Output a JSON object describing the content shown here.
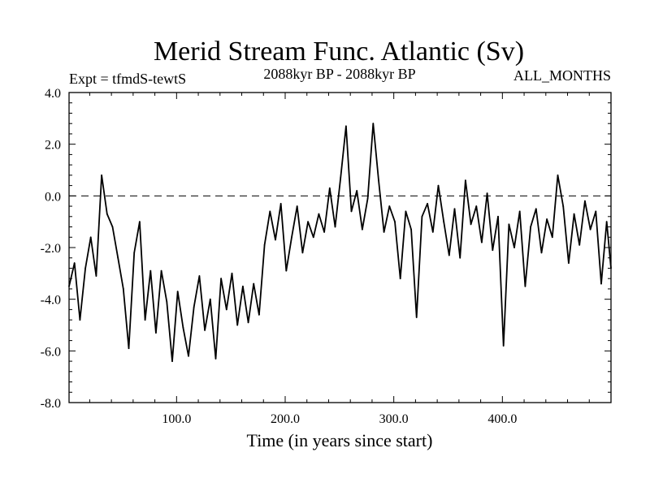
{
  "chart_data": {
    "type": "line",
    "title": "Merid Stream Func. Atlantic (Sv)",
    "expt_label": "Expt = tfmdS-tewtS",
    "period_label": "2088kyr BP - 2088kyr BP",
    "months_label": "ALL_MONTHS",
    "xlabel": "Time (in years since start)",
    "ylabel": "",
    "xlim": [
      1,
      500
    ],
    "ylim": [
      -8,
      4
    ],
    "x_ticks": [
      {
        "value": 100,
        "label": "100.0"
      },
      {
        "value": 200,
        "label": "200.0"
      },
      {
        "value": 300,
        "label": "300.0"
      },
      {
        "value": 400,
        "label": "400.0"
      }
    ],
    "y_ticks": [
      {
        "value": 4,
        "label": "4.0"
      },
      {
        "value": 2,
        "label": "2.0"
      },
      {
        "value": 0,
        "label": "0.0"
      },
      {
        "value": -2,
        "label": "-2.0"
      },
      {
        "value": -4,
        "label": "-4.0"
      },
      {
        "value": -6,
        "label": "-6.0"
      },
      {
        "value": -8,
        "label": "-8.0"
      }
    ],
    "reference_line": {
      "y": 0,
      "style": "dashed"
    },
    "series": [
      {
        "name": "Merid Stream Func. Atlantic",
        "x": [
          1,
          6,
          11,
          16,
          21,
          26,
          31,
          36,
          41,
          46,
          51,
          56,
          61,
          66,
          71,
          76,
          81,
          86,
          91,
          96,
          101,
          106,
          111,
          116,
          121,
          126,
          131,
          136,
          141,
          146,
          151,
          156,
          161,
          166,
          171,
          176,
          181,
          186,
          191,
          196,
          201,
          206,
          211,
          216,
          221,
          226,
          231,
          236,
          241,
          246,
          251,
          256,
          261,
          266,
          271,
          276,
          281,
          286,
          291,
          296,
          301,
          306,
          311,
          316,
          321,
          326,
          331,
          336,
          341,
          346,
          351,
          356,
          361,
          366,
          371,
          376,
          381,
          386,
          391,
          396,
          401,
          406,
          411,
          416,
          421,
          426,
          431,
          436,
          441,
          446,
          451,
          456,
          461,
          466,
          471,
          476,
          481,
          486,
          491,
          496,
          500
        ],
        "values": [
          -3.5,
          -2.6,
          -4.8,
          -2.8,
          -1.6,
          -3.1,
          0.8,
          -0.7,
          -1.2,
          -2.4,
          -3.6,
          -5.9,
          -2.2,
          -1.0,
          -4.8,
          -2.9,
          -5.3,
          -2.9,
          -4.1,
          -6.4,
          -3.7,
          -5.1,
          -6.2,
          -4.3,
          -3.1,
          -5.2,
          -4.0,
          -6.3,
          -3.2,
          -4.4,
          -3.0,
          -5.0,
          -3.5,
          -4.9,
          -3.4,
          -4.6,
          -1.9,
          -0.6,
          -1.7,
          -0.3,
          -2.9,
          -1.6,
          -0.4,
          -2.2,
          -1.0,
          -1.6,
          -0.7,
          -1.4,
          0.3,
          -1.2,
          0.7,
          2.7,
          -0.6,
          0.2,
          -1.3,
          -0.1,
          2.8,
          0.6,
          -1.4,
          -0.4,
          -1.0,
          -3.2,
          -0.6,
          -1.3,
          -4.7,
          -0.8,
          -0.3,
          -1.4,
          0.4,
          -1.0,
          -2.3,
          -0.5,
          -2.4,
          0.6,
          -1.1,
          -0.4,
          -1.8,
          0.1,
          -2.1,
          -0.8,
          -5.8,
          -1.1,
          -2.0,
          -0.6,
          -3.5,
          -1.2,
          -0.5,
          -2.2,
          -0.9,
          -1.6,
          0.8,
          -0.4,
          -2.6,
          -0.7,
          -1.9,
          -0.2,
          -1.3,
          -0.6,
          -3.4,
          -1.0,
          -2.8
        ]
      }
    ]
  }
}
